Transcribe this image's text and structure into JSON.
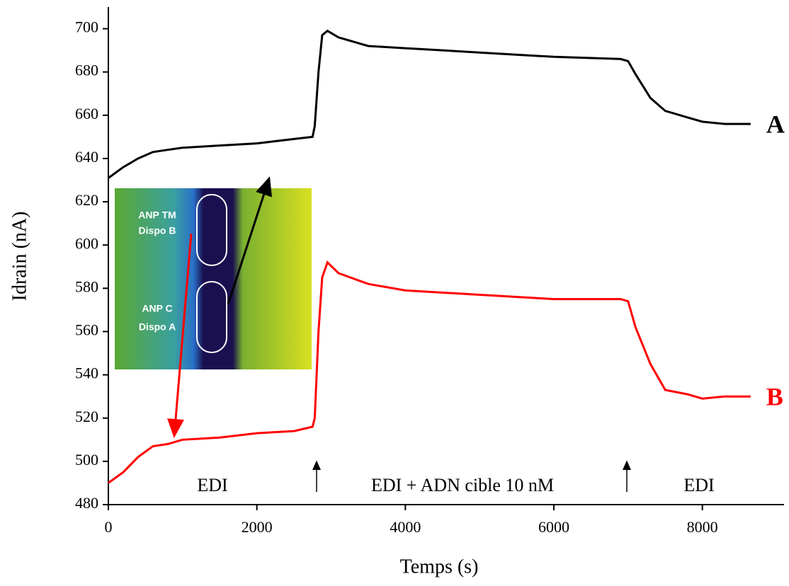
{
  "chart_data": {
    "type": "line",
    "x_label": "Temps (s)",
    "y_label": "Idrain (nA)",
    "x": [
      0,
      200,
      400,
      600,
      800,
      1000,
      1500,
      2000,
      2500,
      2750,
      2780,
      2830,
      2880,
      2950,
      3100,
      3500,
      4000,
      5000,
      6000,
      6900,
      7000,
      7100,
      7300,
      7500,
      7800,
      8000,
      8300,
      8650
    ],
    "series": [
      {
        "name": "A",
        "color": "#000000",
        "values": [
          631,
          636,
          640,
          643,
          644,
          645,
          646,
          647,
          649,
          650,
          655,
          680,
          697,
          699,
          696,
          692,
          691,
          689,
          687,
          686,
          685,
          679,
          668,
          662,
          659,
          657,
          656,
          656
        ]
      },
      {
        "name": "B",
        "color": "#ff0000",
        "values": [
          490,
          495,
          502,
          507,
          508,
          510,
          511,
          513,
          514,
          516,
          520,
          560,
          585,
          592,
          587,
          582,
          579,
          577,
          575,
          575,
          574,
          562,
          545,
          533,
          531,
          529,
          530,
          530
        ]
      }
    ],
    "xlim": [
      0,
      9100
    ],
    "xticks": [
      0,
      2000,
      4000,
      6000,
      8000
    ],
    "ylim": [
      480,
      710
    ],
    "yticks": [
      480,
      500,
      520,
      540,
      560,
      580,
      600,
      620,
      640,
      660,
      680,
      700
    ],
    "annotations": [
      "EDI",
      "EDI + ADN cible 10 nM",
      "EDI"
    ],
    "inset_labels": [
      "ANP TM",
      "Dispo B",
      "ANP C",
      "Dispo A"
    ]
  }
}
